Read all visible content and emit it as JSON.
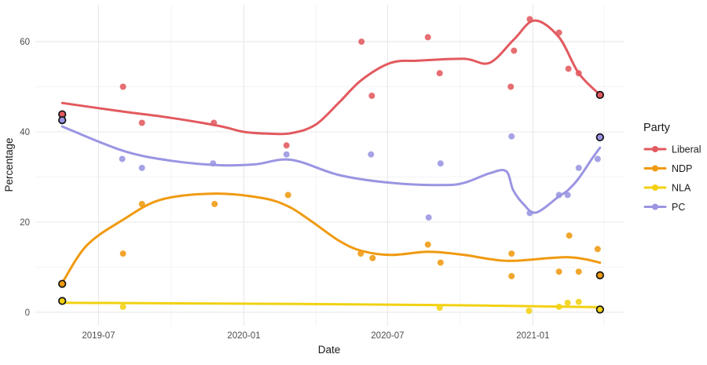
{
  "figure": {
    "x_axis_title": "Date",
    "y_axis_title": "Percentage",
    "legend_title": "Party"
  },
  "colors": {
    "liberal": "#E25A5F",
    "ndp": "#F09A10",
    "nla": "#F2D112",
    "pc": "#9A95E2",
    "grid_major": "#E8E8E8",
    "grid_minor": "#F3F3F3",
    "axis_text": "#4D4D4D",
    "axis_title": "#1A1A1A",
    "election_outline": "#111111",
    "background": "#FFFFFF"
  },
  "chart_data": {
    "type": "scatter",
    "title": "",
    "xlabel": "Date",
    "ylabel": "Percentage",
    "legend_title": "Party",
    "legend_position": "right",
    "grid": true,
    "x_domain": [
      "2019-04-12",
      "2021-04-26"
    ],
    "y_domain": [
      -3,
      68.2
    ],
    "x_ticks": [
      {
        "date": "2019-07-01",
        "label": "2019-07"
      },
      {
        "date": "2020-01-01",
        "label": "2020-01"
      },
      {
        "date": "2020-07-01",
        "label": "2020-07"
      },
      {
        "date": "2021-01-01",
        "label": "2021-01"
      }
    ],
    "x_minor_ticks": [
      "2019-10-01",
      "2020-04-01",
      "2020-10-01",
      "2021-04-01"
    ],
    "y_ticks": [
      0,
      20,
      40,
      60
    ],
    "y_minor_ticks": [
      10,
      30,
      50
    ],
    "point_note": "points with third element 1 are election results drawn with a black outline; trend arrays are the loess smooth curves read off the figure",
    "series": [
      {
        "name": "Liberal",
        "color_key": "liberal",
        "points": [
          [
            "2019-05-16",
            43.9,
            1
          ],
          [
            "2019-08-01",
            50
          ],
          [
            "2019-08-25",
            42
          ],
          [
            "2019-11-24",
            42
          ],
          [
            "2020-02-24",
            37
          ],
          [
            "2020-05-29",
            60
          ],
          [
            "2020-06-11",
            48
          ],
          [
            "2020-08-21",
            61
          ],
          [
            "2020-09-05",
            53
          ],
          [
            "2020-12-04",
            50
          ],
          [
            "2020-12-08",
            58
          ],
          [
            "2020-12-28",
            65
          ],
          [
            "2021-02-03",
            62
          ],
          [
            "2021-02-15",
            54
          ],
          [
            "2021-02-28",
            53
          ],
          [
            "2021-03-27",
            48.2,
            1
          ]
        ],
        "trend": [
          [
            "2019-05-16",
            46.4
          ],
          [
            "2019-08-01",
            44.5
          ],
          [
            "2019-10-01",
            43.1
          ],
          [
            "2019-12-01",
            41.3
          ],
          [
            "2020-01-01",
            40.0
          ],
          [
            "2020-02-01",
            39.6
          ],
          [
            "2020-03-01",
            39.7
          ],
          [
            "2020-04-01",
            41.6
          ],
          [
            "2020-05-01",
            46.6
          ],
          [
            "2020-05-29",
            51.5
          ],
          [
            "2020-07-05",
            55.3
          ],
          [
            "2020-08-09",
            55.8
          ],
          [
            "2020-10-06",
            56.2
          ],
          [
            "2020-11-07",
            55.3
          ],
          [
            "2020-12-08",
            60.5
          ],
          [
            "2021-01-03",
            64.7
          ],
          [
            "2021-02-03",
            61.0
          ],
          [
            "2021-02-28",
            53.0
          ],
          [
            "2021-03-27",
            48.2
          ]
        ]
      },
      {
        "name": "NDP",
        "color_key": "ndp",
        "points": [
          [
            "2019-05-16",
            6.3,
            1
          ],
          [
            "2019-08-01",
            13
          ],
          [
            "2019-08-25",
            24
          ],
          [
            "2019-11-25",
            24
          ],
          [
            "2020-02-26",
            26
          ],
          [
            "2020-05-28",
            13
          ],
          [
            "2020-06-12",
            12
          ],
          [
            "2020-08-21",
            15
          ],
          [
            "2020-09-06",
            11
          ],
          [
            "2020-12-05",
            13
          ],
          [
            "2020-12-05",
            8
          ],
          [
            "2021-02-03",
            9
          ],
          [
            "2021-02-16",
            17
          ],
          [
            "2021-02-28",
            9
          ],
          [
            "2021-03-24",
            14
          ],
          [
            "2021-03-27",
            8.2,
            1
          ]
        ],
        "trend": [
          [
            "2019-05-16",
            6.5
          ],
          [
            "2019-06-16",
            14.8
          ],
          [
            "2019-08-01",
            20.5
          ],
          [
            "2019-09-17",
            24.9
          ],
          [
            "2019-11-22",
            26.3
          ],
          [
            "2020-01-22",
            25.4
          ],
          [
            "2020-02-26",
            23.5
          ],
          [
            "2020-03-28",
            20.0
          ],
          [
            "2020-05-01",
            15.8
          ],
          [
            "2020-05-29",
            13.6
          ],
          [
            "2020-07-05",
            12.7
          ],
          [
            "2020-08-22",
            13.4
          ],
          [
            "2020-10-06",
            12.7
          ],
          [
            "2020-11-07",
            11.8
          ],
          [
            "2020-12-07",
            11.4
          ],
          [
            "2021-02-16",
            12.2
          ],
          [
            "2021-03-27",
            11.0
          ]
        ]
      },
      {
        "name": "NLA",
        "color_key": "nla",
        "points": [
          [
            "2019-05-16",
            2.5,
            1
          ],
          [
            "2019-08-01",
            1.2
          ],
          [
            "2020-09-05",
            1.0
          ],
          [
            "2020-12-27",
            0.3
          ],
          [
            "2021-02-03",
            1.2
          ],
          [
            "2021-02-14",
            2.1
          ],
          [
            "2021-02-28",
            2.3
          ],
          [
            "2021-03-27",
            0.6,
            1
          ]
        ],
        "trend": [
          [
            "2019-05-16",
            2.1
          ],
          [
            "2020-01-01",
            1.9
          ],
          [
            "2020-09-01",
            1.6
          ],
          [
            "2021-03-27",
            1.1
          ]
        ]
      },
      {
        "name": "PC",
        "color_key": "pc",
        "points": [
          [
            "2019-05-16",
            42.6,
            1
          ],
          [
            "2019-07-31",
            34
          ],
          [
            "2019-08-25",
            32
          ],
          [
            "2019-11-23",
            33
          ],
          [
            "2020-02-24",
            35
          ],
          [
            "2020-06-10",
            35
          ],
          [
            "2020-08-22",
            21
          ],
          [
            "2020-09-06",
            33
          ],
          [
            "2020-12-05",
            39
          ],
          [
            "2020-12-28",
            22
          ],
          [
            "2021-02-03",
            26
          ],
          [
            "2021-02-14",
            26
          ],
          [
            "2021-02-28",
            32
          ],
          [
            "2021-03-24",
            34
          ],
          [
            "2021-03-27",
            38.8,
            1
          ]
        ],
        "trend": [
          [
            "2019-05-16",
            41.2
          ],
          [
            "2019-08-01",
            35.8
          ],
          [
            "2019-10-01",
            33.6
          ],
          [
            "2019-12-01",
            32.6
          ],
          [
            "2020-01-15",
            32.8
          ],
          [
            "2020-03-01",
            33.8
          ],
          [
            "2020-05-01",
            30.4
          ],
          [
            "2020-07-05",
            28.7
          ],
          [
            "2020-09-08",
            28.2
          ],
          [
            "2020-10-06",
            28.7
          ],
          [
            "2020-11-07",
            30.8
          ],
          [
            "2020-11-28",
            31.3
          ],
          [
            "2020-12-07",
            27.1
          ],
          [
            "2020-12-20",
            24.0
          ],
          [
            "2021-01-05",
            22.1
          ],
          [
            "2021-02-03",
            25.7
          ],
          [
            "2021-02-14",
            27.0
          ],
          [
            "2021-02-28",
            29.7
          ],
          [
            "2021-03-17",
            34.1
          ],
          [
            "2021-03-27",
            36.5
          ]
        ]
      }
    ]
  }
}
